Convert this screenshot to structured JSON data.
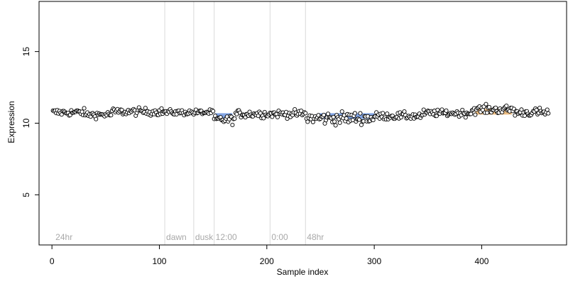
{
  "chart_data": {
    "type": "scatter",
    "title": "",
    "xlabel": "Sample index",
    "ylabel": "Expression",
    "xlim": [
      -12,
      479
    ],
    "ylim": [
      1.5,
      18.5
    ],
    "xticks": [
      0,
      100,
      200,
      300,
      400
    ],
    "yticks": [
      5,
      10,
      15
    ],
    "grid": false,
    "legend": "none",
    "colors": {
      "point_fill": "#ffffff",
      "point_stroke": "#000000",
      "guide_line": "#d9d9d9",
      "annotation": "#a8a8a8",
      "low_band": "#6f96e0",
      "high_band": "#e8b06c"
    },
    "guide_lines": [
      {
        "x": 105,
        "label": "dawn"
      },
      {
        "x": 132,
        "label": "dusk"
      },
      {
        "x": 151,
        "label": "12:00"
      },
      {
        "x": 203,
        "label": "0:00"
      },
      {
        "x": 236,
        "label": "48hr"
      }
    ],
    "corner_label": {
      "x": 2,
      "label": "24hr"
    },
    "segments": [
      {
        "x0": 1,
        "x1": 30,
        "base": 10.75,
        "noise": 0.13
      },
      {
        "x0": 30,
        "x1": 55,
        "base": 10.6,
        "noise": 0.12
      },
      {
        "x0": 55,
        "x1": 105,
        "base": 10.8,
        "noise": 0.13
      },
      {
        "x0": 105,
        "x1": 150,
        "base": 10.75,
        "noise": 0.1
      },
      {
        "x0": 150,
        "x1": 170,
        "base": 10.25,
        "noise": 0.15
      },
      {
        "x0": 170,
        "x1": 200,
        "base": 10.65,
        "noise": 0.14
      },
      {
        "x0": 200,
        "x1": 236,
        "base": 10.65,
        "noise": 0.13
      },
      {
        "x0": 236,
        "x1": 300,
        "base": 10.35,
        "noise": 0.22
      },
      {
        "x0": 300,
        "x1": 345,
        "base": 10.5,
        "noise": 0.13
      },
      {
        "x0": 345,
        "x1": 390,
        "base": 10.7,
        "noise": 0.12
      },
      {
        "x0": 390,
        "x1": 430,
        "base": 10.95,
        "noise": 0.15
      },
      {
        "x0": 430,
        "x1": 462,
        "base": 10.75,
        "noise": 0.15
      }
    ],
    "bands": [
      {
        "x0": 152,
        "x1": 168,
        "y": 10.5,
        "color": "low_band"
      },
      {
        "x0": 248,
        "x1": 300,
        "y": 10.5,
        "color": "low_band"
      },
      {
        "x0": 394,
        "x1": 428,
        "y": 10.8,
        "color": "high_band"
      }
    ],
    "n_points": 462
  }
}
